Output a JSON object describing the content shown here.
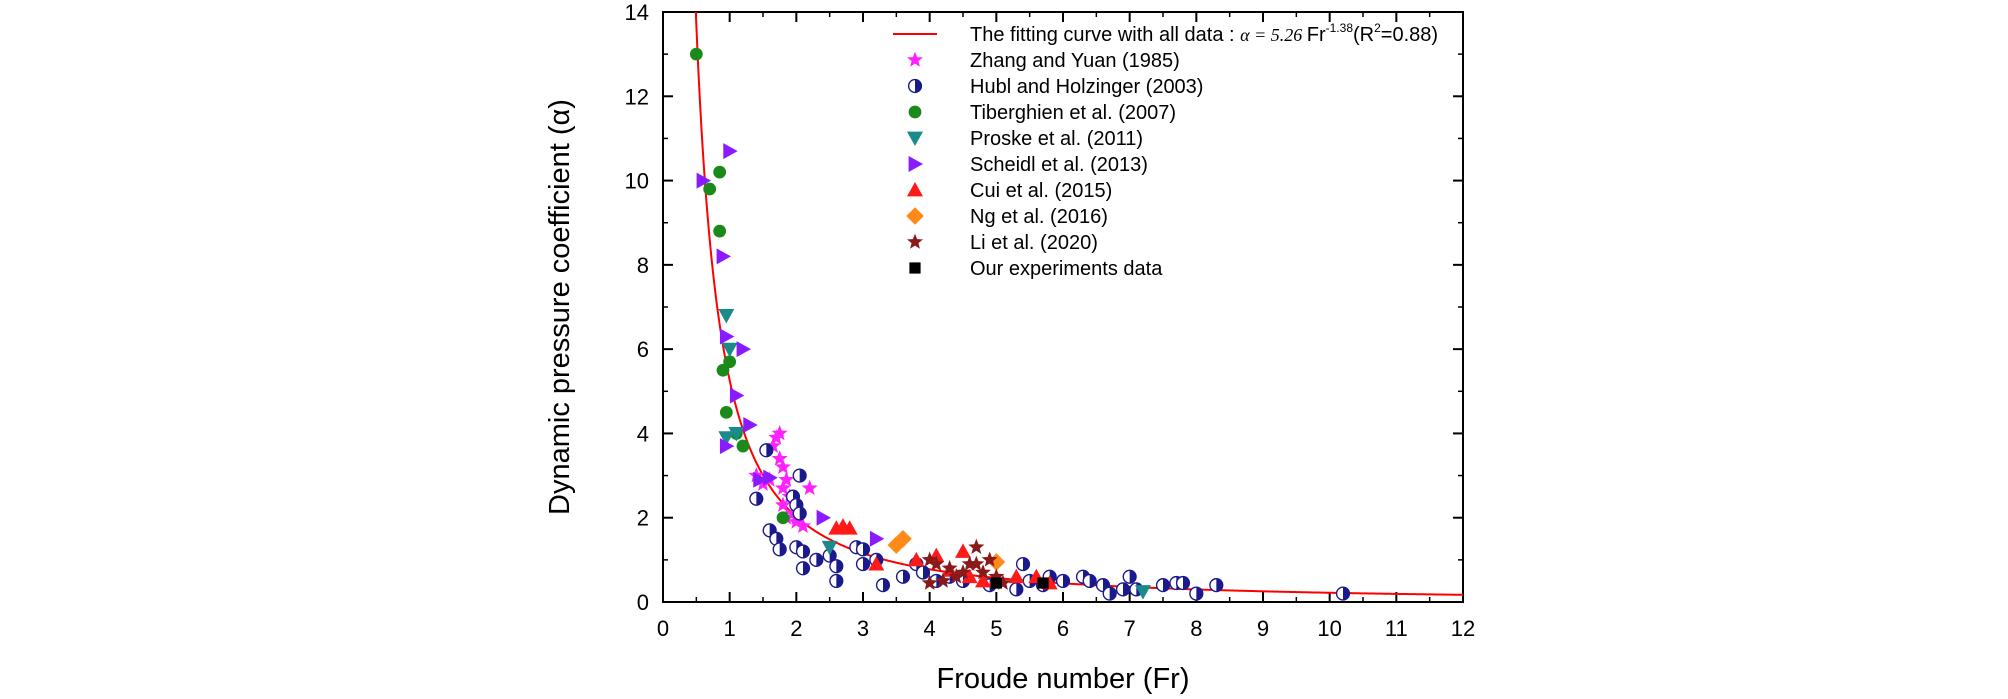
{
  "chart_data": {
    "type": "scatter",
    "xlabel": "Froude number (Fr)",
    "ylabel": "Dynamic pressure coefficient (α)",
    "xlim": [
      0,
      12
    ],
    "ylim": [
      0,
      14
    ],
    "x_ticks": [
      0,
      1,
      2,
      3,
      4,
      5,
      6,
      7,
      8,
      9,
      10,
      11,
      12
    ],
    "y_ticks": [
      0,
      2,
      4,
      6,
      8,
      10,
      12,
      14
    ],
    "grid": false,
    "legend_position": "top-right",
    "fit_curve": {
      "label": "The fitting curve with all data : ",
      "formula_lhs": "α = 5.26 ",
      "formula_fr": "Fr",
      "formula_exp": "-1.38",
      "r2_open": "(R",
      "r2_sup": "2",
      "r2_close": "=0.88)",
      "a": 5.26,
      "b": -1.38,
      "color": "#ff0000"
    },
    "series": [
      {
        "name": "Zhang and Yuan (1985)",
        "marker": "star",
        "color": "#ff22ff",
        "points": [
          [
            1.4,
            3.0
          ],
          [
            1.5,
            2.8
          ],
          [
            1.6,
            2.9
          ],
          [
            1.65,
            3.7
          ],
          [
            1.7,
            3.9
          ],
          [
            1.75,
            4.0
          ],
          [
            1.75,
            3.4
          ],
          [
            1.8,
            3.2
          ],
          [
            1.8,
            2.7
          ],
          [
            1.8,
            2.3
          ],
          [
            1.85,
            2.9
          ],
          [
            1.85,
            2.0
          ],
          [
            1.9,
            2.5
          ],
          [
            1.95,
            2.1
          ],
          [
            2.0,
            2.0
          ],
          [
            2.0,
            1.9
          ],
          [
            2.1,
            1.8
          ],
          [
            2.2,
            2.7
          ]
        ]
      },
      {
        "name": "Hubl and Holzinger (2003)",
        "marker": "halfcircle",
        "color": "#1a1a8c",
        "points": [
          [
            1.4,
            2.45
          ],
          [
            1.55,
            3.6
          ],
          [
            1.6,
            1.7
          ],
          [
            1.7,
            1.5
          ],
          [
            1.75,
            1.25
          ],
          [
            1.95,
            2.5
          ],
          [
            2.0,
            2.3
          ],
          [
            2.0,
            1.3
          ],
          [
            2.05,
            2.1
          ],
          [
            2.05,
            3.0
          ],
          [
            2.1,
            1.2
          ],
          [
            2.1,
            0.8
          ],
          [
            2.3,
            1.0
          ],
          [
            2.5,
            1.1
          ],
          [
            2.6,
            0.85
          ],
          [
            2.6,
            0.5
          ],
          [
            2.9,
            1.3
          ],
          [
            3.0,
            1.25
          ],
          [
            3.0,
            0.9
          ],
          [
            3.2,
            1.0
          ],
          [
            3.3,
            0.4
          ],
          [
            3.6,
            0.6
          ],
          [
            3.8,
            0.9
          ],
          [
            3.9,
            0.7
          ],
          [
            4.1,
            0.5
          ],
          [
            4.3,
            0.6
          ],
          [
            4.5,
            0.5
          ],
          [
            4.9,
            0.4
          ],
          [
            5.3,
            0.3
          ],
          [
            5.4,
            0.9
          ],
          [
            5.5,
            0.5
          ],
          [
            5.7,
            0.4
          ],
          [
            5.8,
            0.6
          ],
          [
            6.0,
            0.5
          ],
          [
            6.3,
            0.6
          ],
          [
            6.4,
            0.5
          ],
          [
            6.6,
            0.4
          ],
          [
            6.7,
            0.2
          ],
          [
            6.9,
            0.3
          ],
          [
            7.0,
            0.6
          ],
          [
            7.1,
            0.3
          ],
          [
            7.5,
            0.4
          ],
          [
            7.7,
            0.45
          ],
          [
            7.8,
            0.45
          ],
          [
            8.0,
            0.2
          ],
          [
            8.3,
            0.4
          ],
          [
            10.2,
            0.2
          ]
        ]
      },
      {
        "name": "Tiberghien et al. (2007)",
        "marker": "circle",
        "color": "#1a8a1a",
        "points": [
          [
            0.5,
            13.0
          ],
          [
            0.7,
            9.8
          ],
          [
            0.85,
            10.2
          ],
          [
            0.85,
            8.8
          ],
          [
            0.9,
            5.5
          ],
          [
            0.95,
            4.5
          ],
          [
            1.0,
            5.7
          ],
          [
            1.1,
            4.0
          ],
          [
            1.2,
            3.7
          ],
          [
            1.8,
            2.0
          ]
        ]
      },
      {
        "name": "Proske et al. (2011)",
        "marker": "tri-down",
        "color": "#1a8a8a",
        "points": [
          [
            0.95,
            6.8
          ],
          [
            0.95,
            3.9
          ],
          [
            1.0,
            6.0
          ],
          [
            1.1,
            4.0
          ],
          [
            2.5,
            1.3
          ],
          [
            7.2,
            0.25
          ]
        ]
      },
      {
        "name": "Scheidl et al. (2013)",
        "marker": "tri-right",
        "color": "#8a1aff",
        "points": [
          [
            0.6,
            10.0
          ],
          [
            0.9,
            8.2
          ],
          [
            0.95,
            6.3
          ],
          [
            0.95,
            3.7
          ],
          [
            1.0,
            10.7
          ],
          [
            1.1,
            4.9
          ],
          [
            1.2,
            6.0
          ],
          [
            1.3,
            4.2
          ],
          [
            1.45,
            2.9
          ],
          [
            1.6,
            2.95
          ],
          [
            2.4,
            2.0
          ],
          [
            3.2,
            1.5
          ]
        ]
      },
      {
        "name": "Cui et al. (2015)",
        "marker": "tri-up",
        "color": "#ff1a1a",
        "points": [
          [
            2.6,
            1.75
          ],
          [
            2.7,
            1.8
          ],
          [
            2.8,
            1.75
          ],
          [
            3.2,
            0.9
          ],
          [
            3.8,
            1.0
          ],
          [
            4.1,
            1.1
          ],
          [
            4.3,
            0.75
          ],
          [
            4.5,
            1.2
          ],
          [
            4.6,
            0.6
          ],
          [
            4.8,
            0.5
          ],
          [
            5.0,
            0.55
          ],
          [
            5.3,
            0.6
          ],
          [
            5.6,
            0.6
          ],
          [
            5.8,
            0.45
          ]
        ]
      },
      {
        "name": "Ng et al. (2016)",
        "marker": "diamond",
        "color": "#ff8a1a",
        "points": [
          [
            3.5,
            1.35
          ],
          [
            3.6,
            1.5
          ],
          [
            5.0,
            0.95
          ]
        ]
      },
      {
        "name": "Li et al. (2020)",
        "marker": "star",
        "color": "#8a1a1a",
        "points": [
          [
            4.0,
            0.45
          ],
          [
            4.0,
            1.0
          ],
          [
            4.1,
            0.9
          ],
          [
            4.2,
            0.5
          ],
          [
            4.3,
            0.8
          ],
          [
            4.4,
            0.6
          ],
          [
            4.5,
            0.7
          ],
          [
            4.6,
            0.9
          ],
          [
            4.7,
            1.3
          ],
          [
            4.7,
            0.9
          ],
          [
            4.8,
            0.7
          ],
          [
            4.9,
            1.0
          ],
          [
            5.0,
            0.6
          ],
          [
            5.1,
            0.45
          ]
        ]
      },
      {
        "name": "Our experiments data",
        "marker": "square",
        "color": "#000000",
        "points": [
          [
            5.0,
            0.45
          ],
          [
            5.7,
            0.45
          ]
        ]
      }
    ]
  }
}
